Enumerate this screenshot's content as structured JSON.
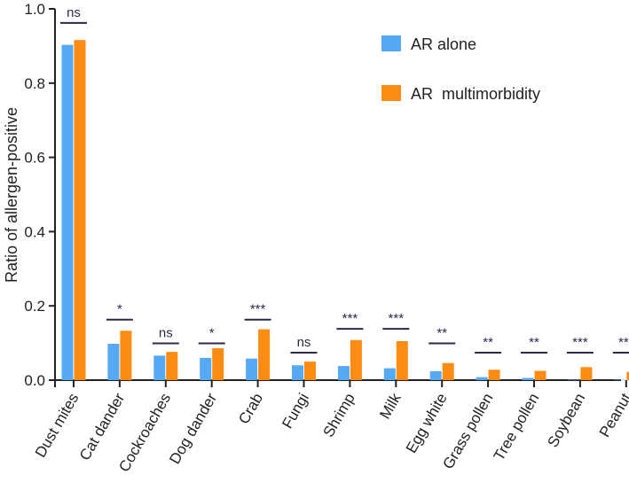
{
  "chart_data": {
    "type": "bar",
    "title": "",
    "xlabel": "",
    "ylabel": "Ratio of allergen-positive",
    "ylim": [
      0,
      1.0
    ],
    "yticks": [
      "0.0",
      "0.2",
      "0.4",
      "0.6",
      "0.8",
      "1.0"
    ],
    "ytick_values": [
      0,
      0.2,
      0.4,
      0.6,
      0.8,
      1.0
    ],
    "grid": false,
    "legend_position": "top-right",
    "categories": [
      "Dust mites",
      "Cat dander",
      "Cockroaches",
      "Dog dander",
      "Crab",
      "Fungi",
      "Shrimp",
      "Milk",
      "Egg white",
      "Grass pollen",
      "Tree pollen",
      "Soybean",
      "Peanut"
    ],
    "series": [
      {
        "name": "AR alone",
        "color": "#55a9f5",
        "values": [
          0.903,
          0.098,
          0.066,
          0.06,
          0.058,
          0.04,
          0.038,
          0.032,
          0.024,
          0.008,
          0.006,
          0.001,
          0.001
        ]
      },
      {
        "name": "AR  multimorbidity",
        "color": "#fd8c14",
        "values": [
          0.916,
          0.133,
          0.076,
          0.086,
          0.137,
          0.05,
          0.108,
          0.105,
          0.046,
          0.028,
          0.025,
          0.035,
          0.022
        ]
      }
    ],
    "significance": [
      {
        "label": "ns",
        "bracket_y": 0.962
      },
      {
        "label": "*",
        "bracket_y": 0.163
      },
      {
        "label": "ns",
        "bracket_y": 0.099
      },
      {
        "label": "*",
        "bracket_y": 0.099
      },
      {
        "label": "***",
        "bracket_y": 0.163
      },
      {
        "label": "ns",
        "bracket_y": 0.074
      },
      {
        "label": "***",
        "bracket_y": 0.138
      },
      {
        "label": "***",
        "bracket_y": 0.138
      },
      {
        "label": "**",
        "bracket_y": 0.099
      },
      {
        "label": "**",
        "bracket_y": 0.074
      },
      {
        "label": "**",
        "bracket_y": 0.074
      },
      {
        "label": "***",
        "bracket_y": 0.074
      },
      {
        "label": "***",
        "bracket_y": 0.074
      }
    ]
  }
}
